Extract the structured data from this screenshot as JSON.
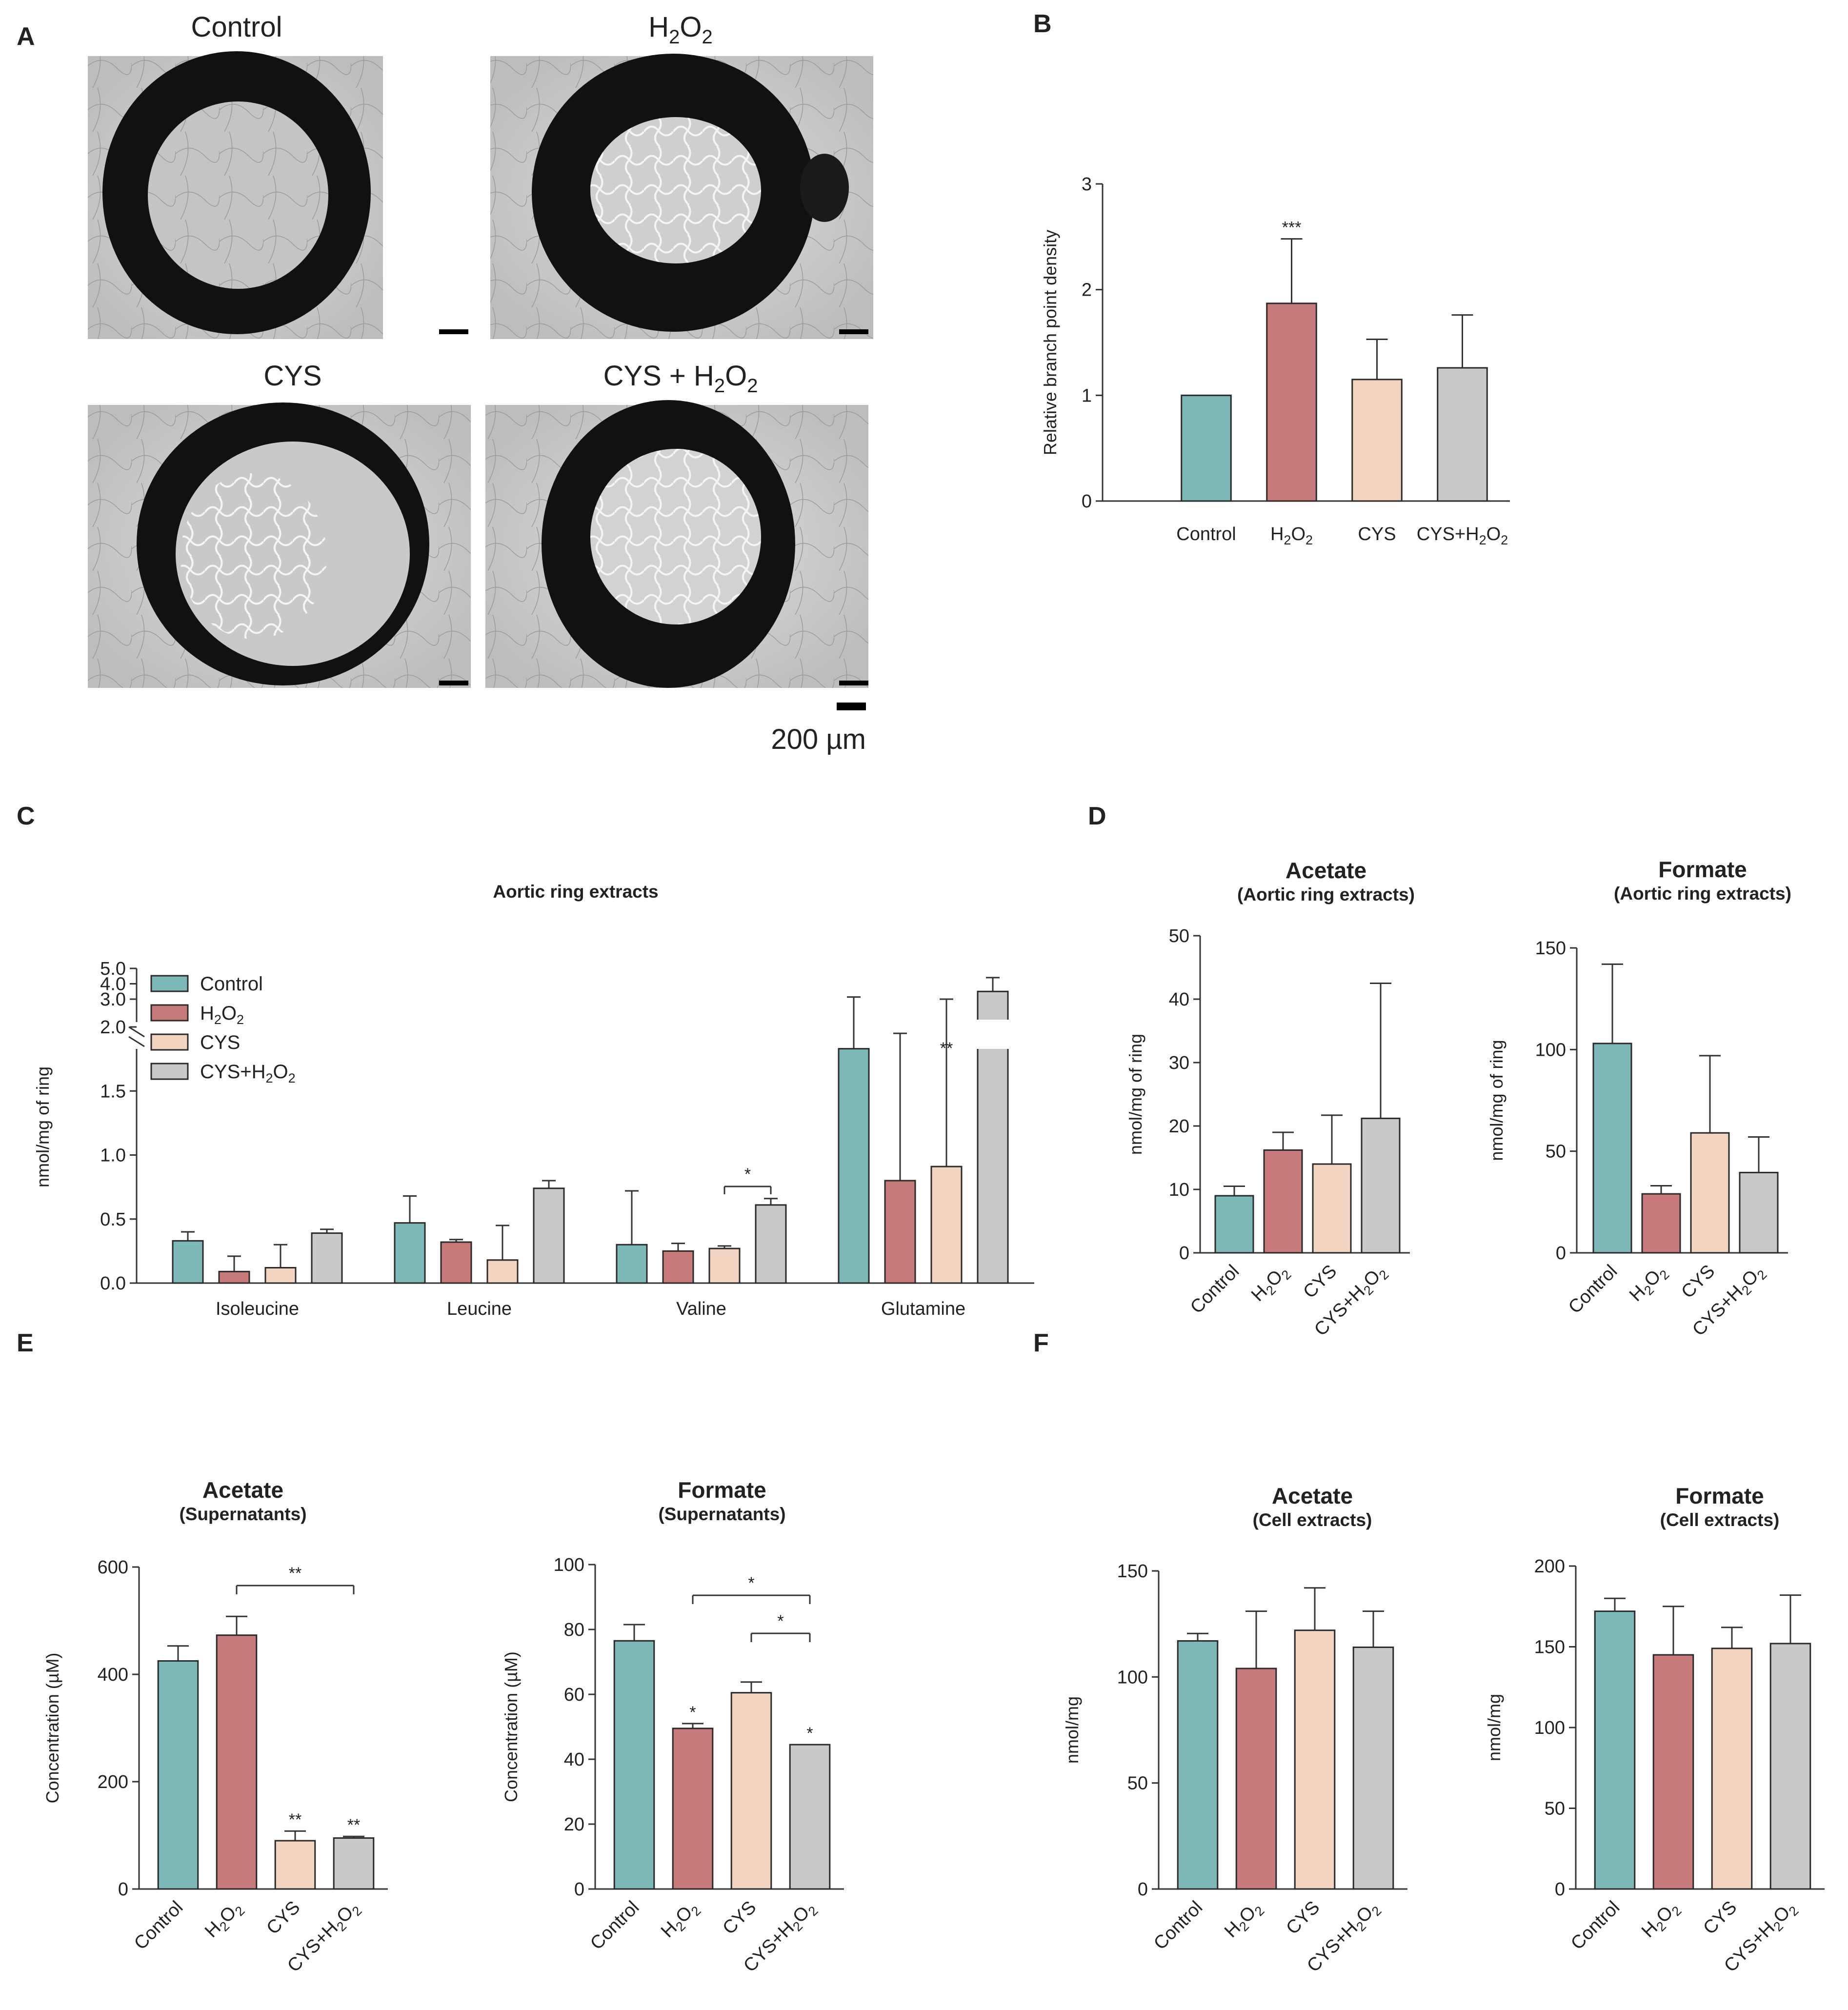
{
  "panel_letters": {
    "a": "A",
    "b": "B",
    "c": "C",
    "d": "D",
    "e": "E",
    "f": "F"
  },
  "colors": {
    "control": "#7cb8b8",
    "h2o2": "#c87a7a",
    "cys": "#f2d4c0",
    "cys_h2o2": "#c9c9c9",
    "edge": "#2a2a2a"
  },
  "panel_a": {
    "images": [
      {
        "label": "Control",
        "base": "Control"
      },
      {
        "label": "H2O2",
        "base": "H",
        "sub1": "2",
        "mid": "O",
        "sub2": "2"
      },
      {
        "label": "CYS",
        "base": "CYS"
      },
      {
        "label": "CYS + H2O2",
        "base": "CYS + H",
        "sub1": "2",
        "mid": "O",
        "sub2": "2"
      }
    ],
    "scale_bar_label": "200 µm"
  },
  "chart_data": [
    {
      "id": "B",
      "type": "bar",
      "title": "",
      "categories": [
        "Control",
        "H2O2",
        "CYS",
        "CYS+H2O2"
      ],
      "values": [
        1.0,
        1.87,
        1.15,
        1.26
      ],
      "errors": [
        0,
        0.61,
        0.38,
        0.5
      ],
      "significance": [
        "",
        "***",
        "",
        ""
      ],
      "ylabel": "Relative branch point density",
      "ylim": [
        0,
        3
      ],
      "yticks": [
        0,
        1,
        2,
        3
      ]
    },
    {
      "id": "C",
      "type": "bar",
      "title": "Aortic ring extracts",
      "groups": [
        "Isoleucine",
        "Leucine",
        "Valine",
        "Glutamine"
      ],
      "series": [
        {
          "name": "Control",
          "values": [
            0.33,
            0.47,
            0.3,
            1.83
          ],
          "errors": [
            0.07,
            0.21,
            0.42,
            1.31
          ]
        },
        {
          "name": "H2O2",
          "values": [
            0.09,
            0.32,
            0.25,
            0.8
          ],
          "errors": [
            0.12,
            0.02,
            0.06,
            1.15
          ]
        },
        {
          "name": "CYS",
          "values": [
            0.12,
            0.18,
            0.27,
            0.91
          ],
          "errors": [
            0.18,
            0.27,
            0.02,
            2.09
          ]
        },
        {
          "name": "CYS+H2O2",
          "values": [
            0.39,
            0.74,
            0.61,
            3.5
          ],
          "errors": [
            0.03,
            0.06,
            0.05,
            0.9
          ]
        }
      ],
      "significance": [
        {
          "group": "Valine",
          "from": "CYS",
          "to": "CYS+H2O2",
          "label": "*"
        },
        {
          "group": "Glutamine",
          "series": "CYS",
          "label": "**"
        }
      ],
      "ylabel": "nmol/mg of ring",
      "lower_yticks": [
        "0.0",
        "0.5",
        "1.0",
        "1.5",
        "2.0"
      ],
      "upper_yticks": [
        "3.0",
        "4.0",
        "5.0"
      ],
      "axis_break": true
    },
    {
      "id": "D1",
      "type": "bar",
      "title": "Acetate",
      "subtitle": "(Aortic ring extracts)",
      "categories": [
        "Control",
        "H2O2",
        "CYS",
        "CYS+H2O2"
      ],
      "values": [
        9.0,
        16.2,
        14.0,
        21.2
      ],
      "errors": [
        1.5,
        2.8,
        7.7,
        21.3
      ],
      "ylabel": "nmol/mg of ring",
      "ylim": [
        0,
        50
      ],
      "yticks": [
        0,
        10,
        20,
        30,
        40,
        50
      ]
    },
    {
      "id": "D2",
      "type": "bar",
      "title": "Formate",
      "subtitle": "(Aortic ring extracts)",
      "categories": [
        "Control",
        "H2O2",
        "CYS",
        "CYS+H2O2"
      ],
      "values": [
        103,
        29,
        59,
        39.5
      ],
      "errors": [
        39,
        4,
        38,
        17.5
      ],
      "ylabel": "nmol/mg of ring",
      "ylim": [
        0,
        150
      ],
      "yticks": [
        0,
        50,
        100,
        150
      ]
    },
    {
      "id": "E1",
      "type": "bar",
      "title": "Acetate",
      "subtitle": "(Supernatants)",
      "categories": [
        "Control",
        "H2O2",
        "CYS",
        "CYS+H2O2"
      ],
      "values": [
        425,
        473,
        90,
        95
      ],
      "errors": [
        28,
        35,
        18,
        3
      ],
      "significance": [
        "",
        "",
        "**",
        "**"
      ],
      "brackets": [
        {
          "from": 1,
          "to": 3,
          "label": "**"
        }
      ],
      "ylabel": "Concentration (µM)",
      "ylim": [
        0,
        600
      ],
      "yticks": [
        0,
        200,
        400,
        600
      ]
    },
    {
      "id": "E2",
      "type": "bar",
      "title": "Formate",
      "subtitle": "(Supernatants)",
      "categories": [
        "Control",
        "H2O2",
        "CYS",
        "CYS+H2O2"
      ],
      "values": [
        76.5,
        49.5,
        60.5,
        44.5
      ],
      "errors": [
        5,
        1.5,
        3.3,
        0
      ],
      "significance": [
        "",
        "*",
        "",
        "*"
      ],
      "brackets": [
        {
          "from": 1,
          "to": 3,
          "label": "*"
        },
        {
          "from": 2,
          "to": 3,
          "label": "*"
        }
      ],
      "ylabel": "Concentration (µM)",
      "ylim": [
        0,
        100
      ],
      "yticks": [
        0,
        20,
        40,
        60,
        80,
        100
      ]
    },
    {
      "id": "F1",
      "type": "bar",
      "title": "Acetate",
      "subtitle": "(Cell extracts)",
      "categories": [
        "Control",
        "H2O2",
        "CYS",
        "CYS+H2O2"
      ],
      "values": [
        117,
        104,
        122,
        114
      ],
      "errors": [
        3.5,
        27,
        20,
        17
      ],
      "ylabel": "nmol/mg",
      "ylim": [
        0,
        150
      ],
      "yticks": [
        0,
        50,
        100,
        150
      ]
    },
    {
      "id": "F2",
      "type": "bar",
      "title": "Formate",
      "subtitle": "(Cell extracts)",
      "categories": [
        "Control",
        "H2O2",
        "CYS",
        "CYS+H2O2"
      ],
      "values": [
        172,
        145,
        149,
        152
      ],
      "errors": [
        8,
        30,
        13,
        30
      ],
      "ylabel": "nmol/mg",
      "ylim": [
        0,
        200
      ],
      "yticks": [
        0,
        50,
        100,
        150,
        200
      ]
    }
  ]
}
